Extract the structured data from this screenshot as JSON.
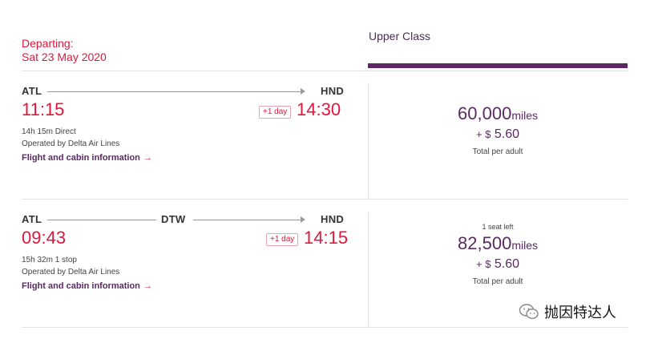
{
  "header": {
    "departing_label": "Departing:",
    "departing_date": "Sat 23 May 2020",
    "cabin_class": "Upper Class"
  },
  "flights": [
    {
      "origin": "ATL",
      "destination": "HND",
      "depart_time": "11:15",
      "arrive_time": "14:30",
      "day_offset": "+1 day",
      "duration": "14h 15m Direct",
      "operator": "Operated by Delta Air Lines",
      "info_link": "Flight and cabin information",
      "miles": "60,000",
      "miles_unit": "miles",
      "tax_prefix": "+ $",
      "tax_amount": "5.60",
      "price_caption": "Total per adult"
    },
    {
      "origin": "ATL",
      "stop": "DTW",
      "destination": "HND",
      "depart_time": "09:43",
      "arrive_time": "14:15",
      "day_offset": "+1 day",
      "duration": "15h 32m 1 stop",
      "operator": "Operated by Delta Air Lines",
      "info_link": "Flight and cabin information",
      "seats_left": "1 seat left",
      "miles": "82,500",
      "miles_unit": "miles",
      "tax_prefix": "+ $",
      "tax_amount": "5.60",
      "price_caption": "Total per adult"
    }
  ],
  "watermark": {
    "icon": "wechat-icon",
    "text": "抛因特达人"
  }
}
